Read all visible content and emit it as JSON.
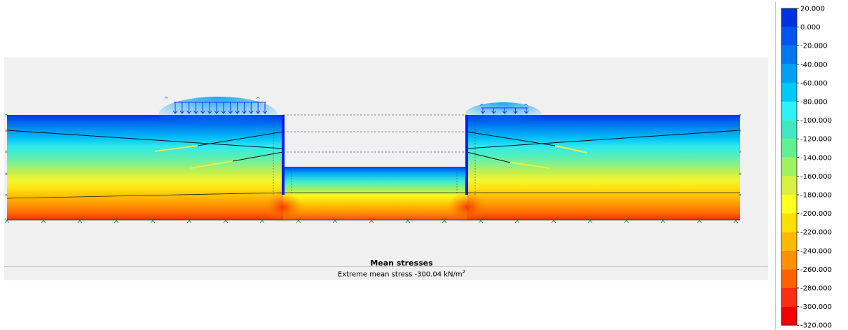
{
  "plot": {
    "title": "Mean stresses",
    "subtitle_prefix": "Extreme mean stress -300.04 kN/m",
    "subtitle_exponent": "2"
  },
  "legend": {
    "ticks": [
      "20.000",
      "0.000",
      "-20.000",
      "-40.000",
      "-60.000",
      "-80.000",
      "-100.000",
      "-120.000",
      "-140.000",
      "-160.000",
      "-180.000",
      "-200.000",
      "-220.000",
      "-240.000",
      "-260.000",
      "-280.000",
      "-300.000",
      "-320.000"
    ],
    "colors": [
      "#0033e0",
      "#0055ee",
      "#0077f0",
      "#00a0f5",
      "#00c8f8",
      "#30f0f8",
      "#40e8c0",
      "#60f090",
      "#a0f060",
      "#d8f040",
      "#ffff20",
      "#ffe000",
      "#ffb800",
      "#ff9000",
      "#ff6000",
      "#f83010",
      "#f00000"
    ]
  },
  "colors": {
    "background": "#f0f0f0",
    "soil_top": "#0040e8",
    "soil_bottom": "#f02000",
    "wall": "#0a1aff",
    "load_arrows": "#1f32ff"
  }
}
